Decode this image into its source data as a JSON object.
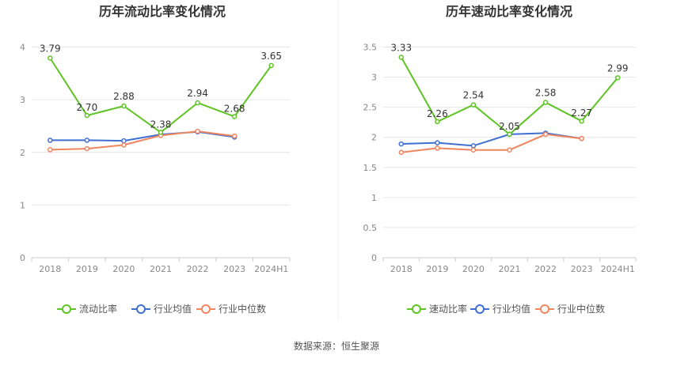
{
  "colors": {
    "main": "#5ec424",
    "avg": "#3f6fd1",
    "median": "#f0855e",
    "grid": "#e6e6e6",
    "axis": "#cccccc"
  },
  "source_text": "数据来源：恒生聚源",
  "chart_data": [
    {
      "type": "line",
      "title": "历年流动比率变化情况",
      "categories": [
        "2018",
        "2019",
        "2020",
        "2021",
        "2022",
        "2023",
        "2024H1"
      ],
      "yticks": [
        "0",
        "1",
        "2",
        "3",
        "4"
      ],
      "ylim": [
        0,
        4
      ],
      "grid": true,
      "legend_position": "bottom-center",
      "series": [
        {
          "name": "流动比率",
          "role": "main",
          "values": [
            3.79,
            2.7,
            2.88,
            2.38,
            2.94,
            2.68,
            3.65
          ],
          "labels": [
            "3.79",
            "2.70",
            "2.88",
            "2.38",
            "2.94",
            "2.68",
            "3.65"
          ]
        },
        {
          "name": "行业均值",
          "role": "avg",
          "values": [
            2.23,
            2.23,
            2.22,
            2.34,
            2.39,
            2.29,
            null
          ]
        },
        {
          "name": "行业中位数",
          "role": "median",
          "values": [
            2.05,
            2.07,
            2.14,
            2.32,
            2.4,
            2.31,
            null
          ]
        }
      ]
    },
    {
      "type": "line",
      "title": "历年速动比率变化情况",
      "categories": [
        "2018",
        "2019",
        "2020",
        "2021",
        "2022",
        "2023",
        "2024H1"
      ],
      "yticks": [
        "0",
        "0.5",
        "1",
        "1.5",
        "2",
        "2.5",
        "3",
        "3.5"
      ],
      "ylim": [
        0,
        3.5
      ],
      "grid": true,
      "legend_position": "bottom-center",
      "series": [
        {
          "name": "速动比率",
          "role": "main",
          "values": [
            3.33,
            2.26,
            2.54,
            2.05,
            2.58,
            2.27,
            2.99
          ],
          "labels": [
            "3.33",
            "2.26",
            "2.54",
            "2.05",
            "2.58",
            "2.27",
            "2.99"
          ]
        },
        {
          "name": "行业均值",
          "role": "avg",
          "values": [
            1.89,
            1.91,
            1.86,
            2.05,
            2.07,
            1.98,
            null
          ]
        },
        {
          "name": "行业中位数",
          "role": "median",
          "values": [
            1.75,
            1.82,
            1.79,
            1.79,
            2.05,
            1.98,
            null
          ]
        }
      ]
    }
  ]
}
